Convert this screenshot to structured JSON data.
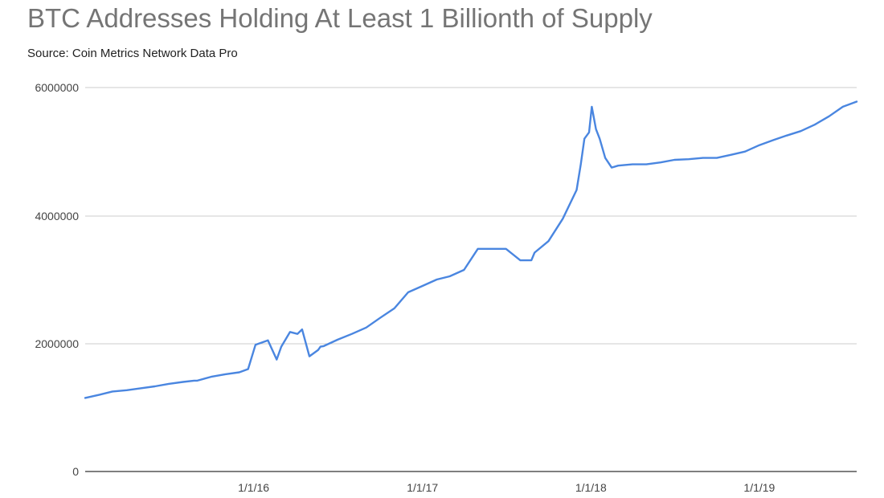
{
  "chart_data": {
    "type": "line",
    "title": "BTC Addresses Holding At Least 1 Billionth of Supply",
    "subtitle": "Source: Coin Metrics Network Data Pro",
    "xlabel": "",
    "ylabel": "",
    "ylim": [
      0,
      6000000
    ],
    "xlim": [
      "2015-01-01",
      "2019-07-31"
    ],
    "yticks": [
      "0",
      "2000000",
      "4000000",
      "6000000"
    ],
    "xticks": [
      {
        "date": "2016-01-01",
        "label": "1/1/16"
      },
      {
        "date": "2017-01-01",
        "label": "1/1/17"
      },
      {
        "date": "2018-01-01",
        "label": "1/1/18"
      },
      {
        "date": "2019-01-01",
        "label": "1/1/19"
      }
    ],
    "grid": true,
    "line_color": "#4a86e0",
    "series": [
      {
        "x": [
          "2015-01-01",
          "2015-02-01",
          "2015-03-01",
          "2015-04-01",
          "2015-05-01",
          "2015-06-01",
          "2015-07-01",
          "2015-08-01",
          "2015-08-25",
          "2015-09-01",
          "2015-10-01",
          "2015-11-01",
          "2015-12-01",
          "2015-12-20",
          "2016-01-05",
          "2016-02-01",
          "2016-02-20",
          "2016-03-01",
          "2016-03-20",
          "2016-04-05",
          "2016-04-15",
          "2016-05-01",
          "2016-05-20",
          "2016-05-25",
          "2016-06-01",
          "2016-07-01",
          "2016-08-01",
          "2016-09-01",
          "2016-10-01",
          "2016-11-01",
          "2016-12-01",
          "2017-01-01",
          "2017-02-01",
          "2017-03-01",
          "2017-04-01",
          "2017-05-01",
          "2017-06-01",
          "2017-07-01",
          "2017-08-01",
          "2017-08-25",
          "2017-09-01",
          "2017-10-01",
          "2017-11-01",
          "2017-12-01",
          "2017-12-10",
          "2017-12-18",
          "2017-12-28",
          "2018-01-03",
          "2018-01-12",
          "2018-01-20",
          "2018-02-01",
          "2018-02-15",
          "2018-03-01",
          "2018-04-01",
          "2018-05-01",
          "2018-06-01",
          "2018-07-01",
          "2018-08-01",
          "2018-09-01",
          "2018-10-01",
          "2018-11-01",
          "2018-12-01",
          "2019-01-01",
          "2019-02-01",
          "2019-03-01",
          "2019-04-01",
          "2019-05-01",
          "2019-06-01",
          "2019-07-01",
          "2019-07-31"
        ],
        "values": [
          1150000,
          1200000,
          1250000,
          1270000,
          1300000,
          1330000,
          1370000,
          1400000,
          1420000,
          1420000,
          1480000,
          1520000,
          1550000,
          1600000,
          1980000,
          2050000,
          1750000,
          1950000,
          2180000,
          2150000,
          2220000,
          1800000,
          1900000,
          1950000,
          1960000,
          2060000,
          2150000,
          2250000,
          2400000,
          2550000,
          2800000,
          2900000,
          3000000,
          3050000,
          3150000,
          3480000,
          3480000,
          3480000,
          3300000,
          3300000,
          3420000,
          3600000,
          3950000,
          4400000,
          4800000,
          5200000,
          5300000,
          5700000,
          5350000,
          5200000,
          4900000,
          4750000,
          4780000,
          4800000,
          4800000,
          4830000,
          4870000,
          4880000,
          4900000,
          4900000,
          4950000,
          5000000,
          5100000,
          5180000,
          5250000,
          5320000,
          5420000,
          5550000,
          5700000,
          5780000
        ]
      }
    ]
  }
}
